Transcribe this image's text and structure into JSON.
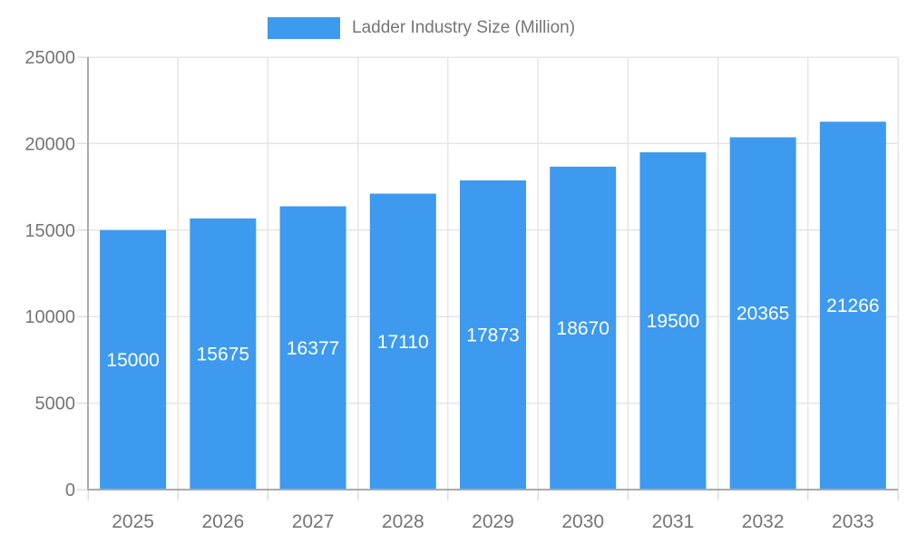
{
  "legend": {
    "label": "Ladder Industry Size (Million)"
  },
  "colors": {
    "bar": "#3D9AEE",
    "bar_label_text": "#FFFFFF",
    "axis_text": "#757575",
    "grid_line": "#E6E6E6",
    "tick_line": "#DDDDDD",
    "axis_line": "#ABABAB",
    "background": "#FFFFFF"
  },
  "chart_data": {
    "type": "bar",
    "title": "Ladder Industry Size (Million)",
    "categories": [
      "2025",
      "2026",
      "2027",
      "2028",
      "2029",
      "2030",
      "2031",
      "2032",
      "2033"
    ],
    "values": [
      15000,
      15675,
      16377,
      17110,
      17873,
      18670,
      19500,
      20365,
      21266
    ],
    "series": [
      {
        "name": "Ladder Industry Size (Million)",
        "values": [
          15000,
          15675,
          16377,
          17110,
          17873,
          18670,
          19500,
          20365,
          21266
        ]
      }
    ],
    "xlabel": "",
    "ylabel": "",
    "ylim": [
      0,
      25000
    ],
    "yticks": [
      0,
      5000,
      10000,
      15000,
      20000,
      25000
    ],
    "grid": "on",
    "legend_position": "top-center",
    "bar_value_labels": "inside-center"
  }
}
